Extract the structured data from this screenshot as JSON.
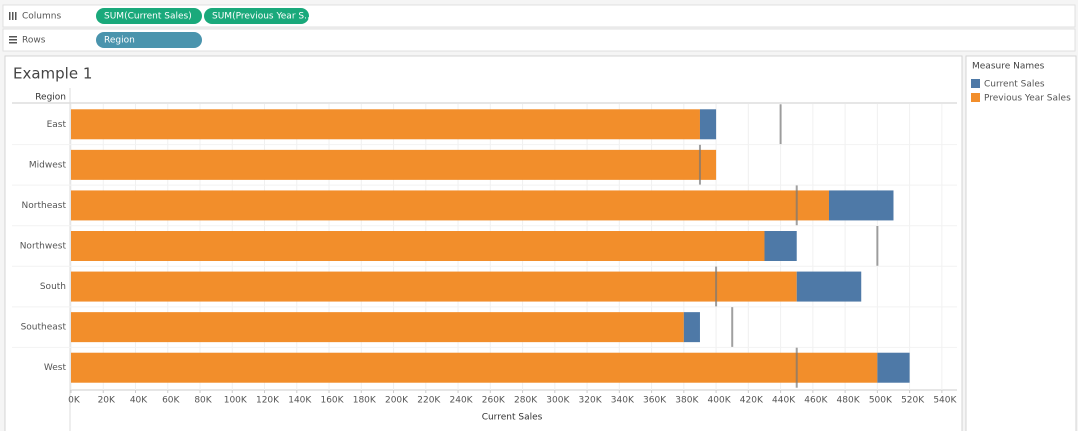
{
  "shelves": {
    "columns": {
      "label": "Columns",
      "pills": [
        "SUM(Current Sales)",
        "SUM(Previous Year S..)"
      ]
    },
    "rows": {
      "label": "Rows",
      "pills": [
        "Region"
      ]
    }
  },
  "chart_data": {
    "type": "stacked-bar",
    "orientation": "horizontal",
    "title": "Example 1",
    "y_label": "Region",
    "x_label": "Current Sales",
    "legend_title": "Measure Names",
    "categories": [
      "East",
      "Midwest",
      "Northeast",
      "Northwest",
      "South",
      "Southeast",
      "West"
    ],
    "series": [
      {
        "name": "Current Sales",
        "color": "#4e79a7",
        "values": [
          10000,
          0,
          40000,
          20000,
          40000,
          10000,
          20000
        ]
      },
      {
        "name": "Previous Year Sales",
        "color": "#f28e2b",
        "values": [
          390000,
          400000,
          470000,
          430000,
          450000,
          380000,
          500000
        ]
      }
    ],
    "reference_lines": [
      440000,
      390000,
      450000,
      500000,
      400000,
      410000,
      450000
    ],
    "xlim": [
      0,
      550000
    ],
    "xticks": [
      {
        "value": 0,
        "label": "0K"
      },
      {
        "value": 20000,
        "label": "20K"
      },
      {
        "value": 40000,
        "label": "40K"
      },
      {
        "value": 60000,
        "label": "60K"
      },
      {
        "value": 80000,
        "label": "80K"
      },
      {
        "value": 100000,
        "label": "100K"
      },
      {
        "value": 120000,
        "label": "120K"
      },
      {
        "value": 140000,
        "label": "140K"
      },
      {
        "value": 160000,
        "label": "160K"
      },
      {
        "value": 180000,
        "label": "180K"
      },
      {
        "value": 200000,
        "label": "200K"
      },
      {
        "value": 220000,
        "label": "220K"
      },
      {
        "value": 240000,
        "label": "240K"
      },
      {
        "value": 260000,
        "label": "260K"
      },
      {
        "value": 280000,
        "label": "280K"
      },
      {
        "value": 300000,
        "label": "300K"
      },
      {
        "value": 320000,
        "label": "320K"
      },
      {
        "value": 340000,
        "label": "340K"
      },
      {
        "value": 360000,
        "label": "360K"
      },
      {
        "value": 380000,
        "label": "380K"
      },
      {
        "value": 400000,
        "label": "400K"
      },
      {
        "value": 420000,
        "label": "420K"
      },
      {
        "value": 440000,
        "label": "440K"
      },
      {
        "value": 460000,
        "label": "460K"
      },
      {
        "value": 480000,
        "label": "480K"
      },
      {
        "value": 500000,
        "label": "500K"
      },
      {
        "value": 520000,
        "label": "520K"
      },
      {
        "value": 540000,
        "label": "540K"
      }
    ],
    "grid": true
  }
}
